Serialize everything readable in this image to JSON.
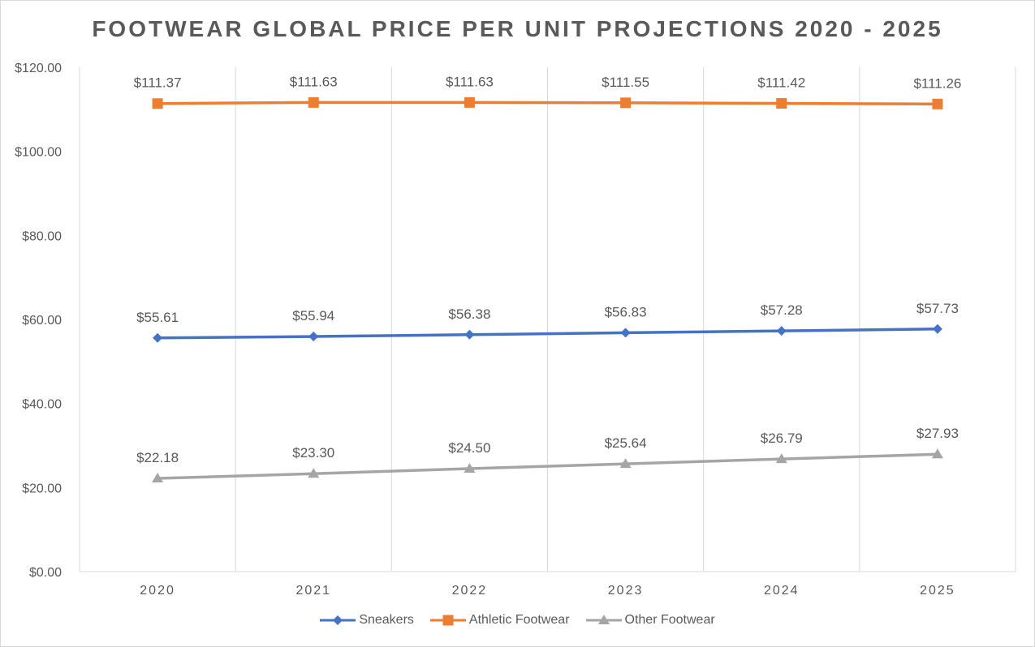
{
  "chart_data": {
    "type": "line",
    "title": "FOOTWEAR GLOBAL PRICE PER UNIT PROJECTIONS 2020 - 2025",
    "categories": [
      "2020",
      "2021",
      "2022",
      "2023",
      "2024",
      "2025"
    ],
    "y_ticks": [
      "$0.00",
      "$20.00",
      "$40.00",
      "$60.00",
      "$80.00",
      "$100.00",
      "$120.00"
    ],
    "ylim": [
      0,
      120
    ],
    "grid": "vertical",
    "legend_position": "bottom",
    "series": [
      {
        "name": "Sneakers",
        "color": "#4472c4",
        "marker": "diamond",
        "values": [
          55.61,
          55.94,
          56.38,
          56.83,
          57.28,
          57.73
        ],
        "labels": [
          "$55.61",
          "$55.94",
          "$56.38",
          "$56.83",
          "$57.28",
          "$57.73"
        ]
      },
      {
        "name": "Athletic Footwear",
        "color": "#ed7d31",
        "marker": "square",
        "values": [
          111.37,
          111.63,
          111.63,
          111.55,
          111.42,
          111.26
        ],
        "labels": [
          "$111.37",
          "$111.63",
          "$111.63",
          "$111.55",
          "$111.42",
          "$111.26"
        ]
      },
      {
        "name": "Other Footwear",
        "color": "#a5a5a5",
        "marker": "triangle",
        "values": [
          22.18,
          23.3,
          24.5,
          25.64,
          26.79,
          27.93
        ],
        "labels": [
          "$22.18",
          "$23.30",
          "$24.50",
          "$25.64",
          "$26.79",
          "$27.93"
        ]
      }
    ]
  }
}
